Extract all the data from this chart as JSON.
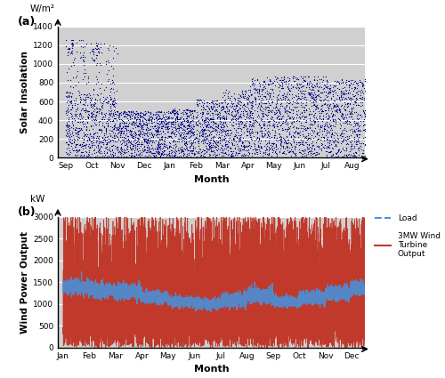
{
  "panel_a": {
    "xlabel": "Month",
    "ylabel": "Solar Insolation",
    "ylabel_unit": "W/m²",
    "months_solar": [
      "Sep",
      "Oct",
      "Nov",
      "Dec",
      "Jan",
      "Feb",
      "Mar",
      "Apr",
      "May",
      "Jun",
      "Jul",
      "Aug"
    ],
    "ylim": [
      0,
      1400
    ],
    "yticks": [
      0,
      200,
      400,
      600,
      800,
      1000,
      1200,
      1400
    ],
    "data_color": "#00008B",
    "bg_color": "#d0d0d0"
  },
  "panel_b": {
    "xlabel": "Month",
    "ylabel": "Wind Power Output",
    "ylabel_unit": "kW",
    "months_wind": [
      "Jan",
      "Feb",
      "Mar",
      "Apr",
      "May",
      "Jun",
      "Jul",
      "Aug",
      "Sep",
      "Oct",
      "Nov",
      "Dec"
    ],
    "ylim": [
      0,
      3000
    ],
    "yticks": [
      0,
      500,
      1000,
      1500,
      2000,
      2500,
      3000
    ],
    "wind_color": "#C0392B",
    "load_color": "#4A90D9",
    "bg_color": "#d0d0d0",
    "legend_load": "Load",
    "legend_wind": "3MW Wind\nTurbine\nOutput"
  }
}
